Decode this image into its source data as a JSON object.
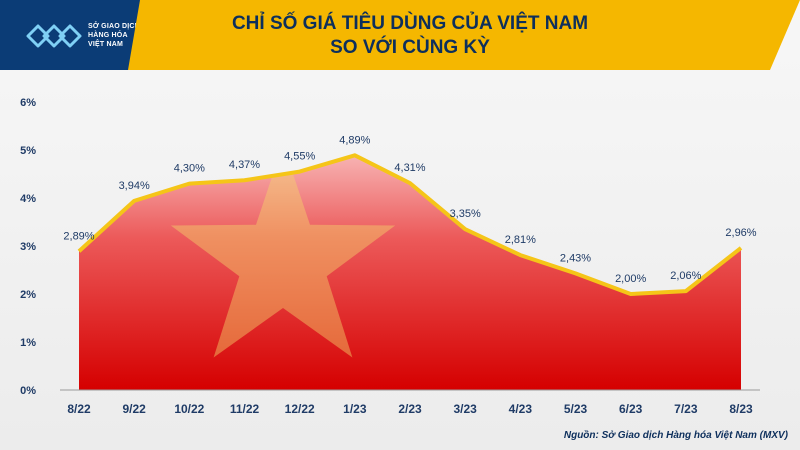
{
  "header": {
    "title_line1": "CHỈ SỐ GIÁ TIÊU DÙNG CỦA VIỆT NAM",
    "title_line2": "SO VỚI CÙNG KỲ",
    "logo_line1": "SỞ GIAO DỊCH",
    "logo_line2": "HÀNG HÓA",
    "logo_line3": "VIỆT NAM"
  },
  "source": "Nguồn: Sở Giao dịch Hàng hóa Việt Nam (MXV)",
  "colors": {
    "header": "#f5b700",
    "logo_bg": "#0b3c76",
    "title": "#0d2f5c",
    "line": "#f5c518",
    "area_top": "#f8b8b8",
    "area_bottom": "#d90000",
    "star": "#f3d36b"
  },
  "chart_data": {
    "type": "area",
    "categories": [
      "8/22",
      "9/22",
      "10/22",
      "11/22",
      "12/22",
      "1/23",
      "2/23",
      "3/23",
      "4/23",
      "5/23",
      "6/23",
      "7/23",
      "8/23"
    ],
    "values": [
      2.89,
      3.94,
      4.3,
      4.37,
      4.55,
      4.89,
      4.31,
      3.35,
      2.81,
      2.43,
      2.0,
      2.06,
      2.96
    ],
    "data_labels": [
      "2,89%",
      "3,94%",
      "4,30%",
      "4,37%",
      "4,55%",
      "4,89%",
      "4,31%",
      "3,35%",
      "2,81%",
      "2,43%",
      "2,00%",
      "2,06%",
      "2,96%"
    ],
    "y_ticks": [
      0,
      1,
      2,
      3,
      4,
      5,
      6
    ],
    "y_tick_labels": [
      "0%",
      "1%",
      "2%",
      "3%",
      "4%",
      "5%",
      "6%"
    ],
    "ylim": [
      0,
      6
    ],
    "grid": false,
    "legend": "none"
  }
}
